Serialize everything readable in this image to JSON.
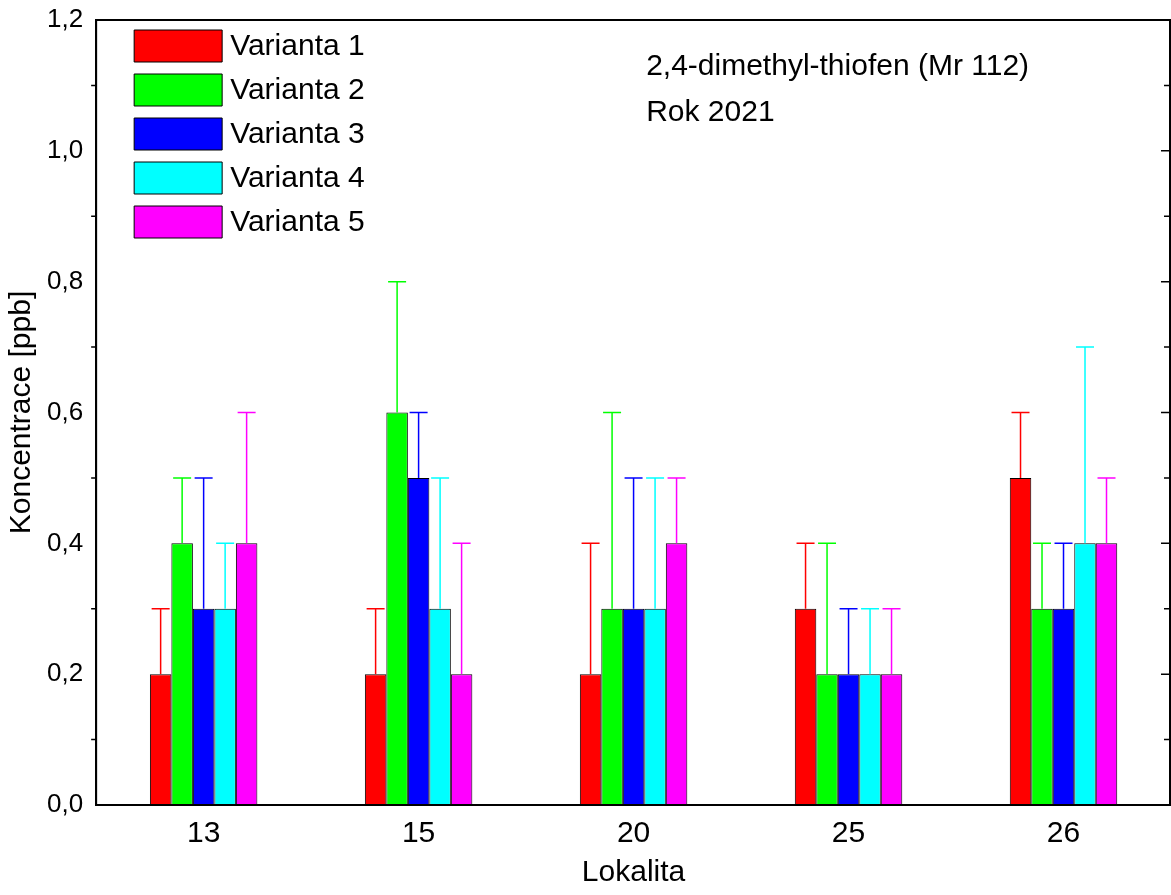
{
  "chart_data": {
    "type": "bar",
    "xlabel": "Lokalita",
    "ylabel": "Koncentrace [ppb]",
    "categories": [
      "13",
      "15",
      "20",
      "25",
      "26"
    ],
    "series": [
      {
        "name": "Varianta 1",
        "color": "#ff0000",
        "values": [
          0.2,
          0.2,
          0.2,
          0.3,
          0.5
        ],
        "errors": [
          [
            0.2,
            0.3
          ],
          [
            0.2,
            0.3
          ],
          [
            0.2,
            0.4
          ],
          [
            0.3,
            0.4
          ],
          [
            0.5,
            0.6
          ]
        ]
      },
      {
        "name": "Varianta 2",
        "color": "#00ff00",
        "values": [
          0.4,
          0.6,
          0.3,
          0.2,
          0.3
        ],
        "errors": [
          [
            0.4,
            0.5
          ],
          [
            0.6,
            0.8
          ],
          [
            0.3,
            0.6
          ],
          [
            0.2,
            0.4
          ],
          [
            0.3,
            0.4
          ]
        ]
      },
      {
        "name": "Varianta 3",
        "color": "#0000ff",
        "values": [
          0.3,
          0.5,
          0.3,
          0.2,
          0.3
        ],
        "errors": [
          [
            0.3,
            0.5
          ],
          [
            0.5,
            0.6
          ],
          [
            0.3,
            0.5
          ],
          [
            0.2,
            0.3
          ],
          [
            0.3,
            0.4
          ]
        ]
      },
      {
        "name": "Varianta 4",
        "color": "#00ffff",
        "values": [
          0.3,
          0.3,
          0.3,
          0.2,
          0.4
        ],
        "errors": [
          [
            0.3,
            0.4
          ],
          [
            0.3,
            0.5
          ],
          [
            0.3,
            0.5
          ],
          [
            0.2,
            0.3
          ],
          [
            0.4,
            0.7
          ]
        ]
      },
      {
        "name": "Varianta 5",
        "color": "#ff00ff",
        "values": [
          0.4,
          0.2,
          0.4,
          0.2,
          0.4
        ],
        "errors": [
          [
            0.4,
            0.6
          ],
          [
            0.2,
            0.4
          ],
          [
            0.4,
            0.5
          ],
          [
            0.2,
            0.3
          ],
          [
            0.4,
            0.5
          ]
        ]
      }
    ],
    "ylim": [
      0,
      1.2
    ],
    "yticks": [
      {
        "value": 0,
        "label": "0,0"
      },
      {
        "value": 0.2,
        "label": "0,2"
      },
      {
        "value": 0.4,
        "label": "0,4"
      },
      {
        "value": 0.6,
        "label": "0,6"
      },
      {
        "value": 0.8,
        "label": "0,8"
      },
      {
        "value": 1.0,
        "label": "1,0"
      },
      {
        "value": 1.2,
        "label": "1,2"
      }
    ],
    "grid": false,
    "legend": "top left",
    "annotations": [
      "2,4-dimethyl-thiofen (Mr 112)",
      "Rok 2021"
    ]
  }
}
